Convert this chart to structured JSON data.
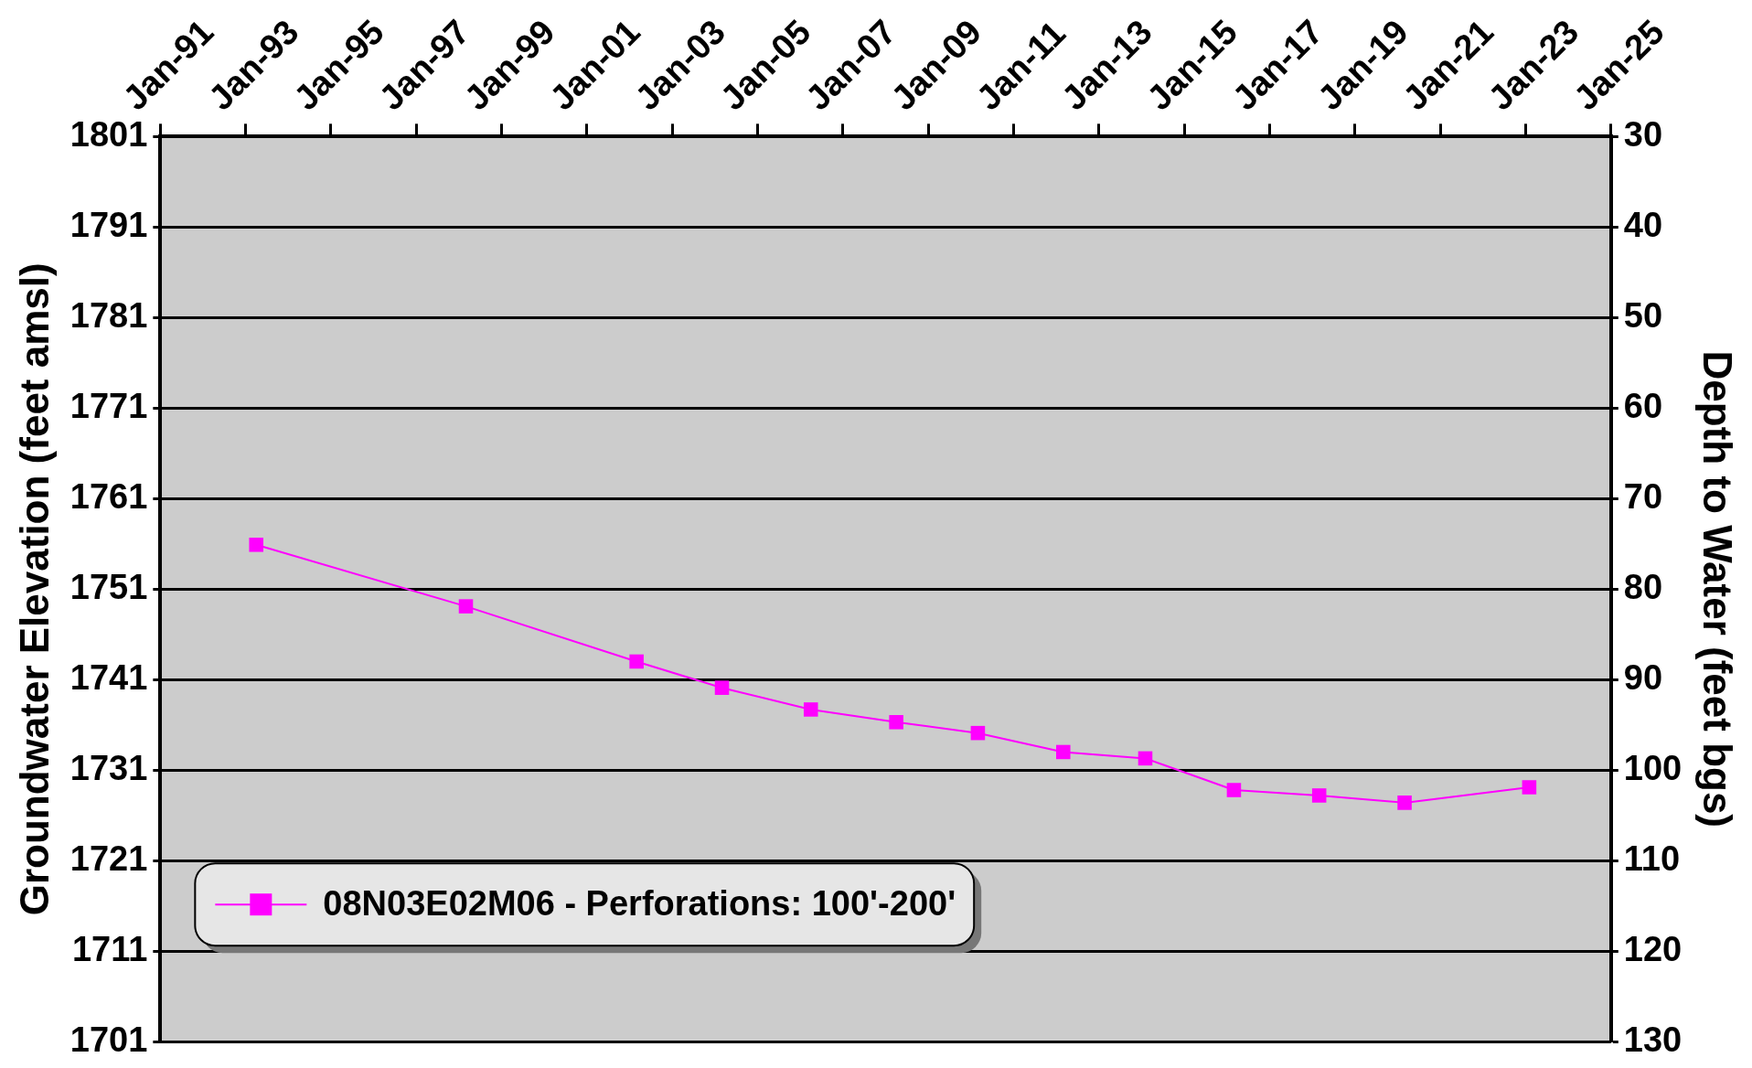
{
  "chart_data": {
    "type": "line",
    "ylabel": "Groundwater Elevation (feet amsl)",
    "y2label": "Depth to Water (feet bgs)",
    "x": [
      "1993-04",
      "1998-03",
      "2002-03",
      "2004-03",
      "2006-04",
      "2008-04",
      "2010-03",
      "2012-03",
      "2014-02",
      "2016-03",
      "2018-03",
      "2020-03",
      "2023-02"
    ],
    "series": [
      {
        "name": "08N03E02M06 - Perforations: 100'-200'",
        "color": "#ff00ff",
        "values": [
          1755.9,
          1749.1,
          1743.0,
          1740.1,
          1737.7,
          1736.3,
          1735.1,
          1733.0,
          1732.3,
          1728.8,
          1728.2,
          1727.4,
          1729.1
        ]
      }
    ],
    "xlim": [
      "1991-01",
      "2025-01"
    ],
    "xticks": [
      {
        "value": "1991-01",
        "label": "Jan-91"
      },
      {
        "value": "1993-01",
        "label": "Jan-93"
      },
      {
        "value": "1995-01",
        "label": "Jan-95"
      },
      {
        "value": "1997-01",
        "label": "Jan-97"
      },
      {
        "value": "1999-01",
        "label": "Jan-99"
      },
      {
        "value": "2001-01",
        "label": "Jan-01"
      },
      {
        "value": "2003-01",
        "label": "Jan-03"
      },
      {
        "value": "2005-01",
        "label": "Jan-05"
      },
      {
        "value": "2007-01",
        "label": "Jan-07"
      },
      {
        "value": "2009-01",
        "label": "Jan-09"
      },
      {
        "value": "2011-01",
        "label": "Jan-11"
      },
      {
        "value": "2013-01",
        "label": "Jan-13"
      },
      {
        "value": "2015-01",
        "label": "Jan-15"
      },
      {
        "value": "2017-01",
        "label": "Jan-17"
      },
      {
        "value": "2019-01",
        "label": "Jan-19"
      },
      {
        "value": "2021-01",
        "label": "Jan-21"
      },
      {
        "value": "2023-01",
        "label": "Jan-23"
      },
      {
        "value": "2025-01",
        "label": "Jan-25"
      }
    ],
    "ylim": [
      1701,
      1801
    ],
    "yticks": [
      1701,
      1711,
      1721,
      1731,
      1741,
      1751,
      1761,
      1771,
      1781,
      1791,
      1801
    ],
    "y2lim": [
      130,
      30
    ],
    "y2ticks": [
      30,
      40,
      50,
      60,
      70,
      80,
      90,
      100,
      110,
      120,
      130
    ],
    "grid": "y",
    "legend": "bottom left",
    "marker": "square",
    "line_style": "solid"
  }
}
